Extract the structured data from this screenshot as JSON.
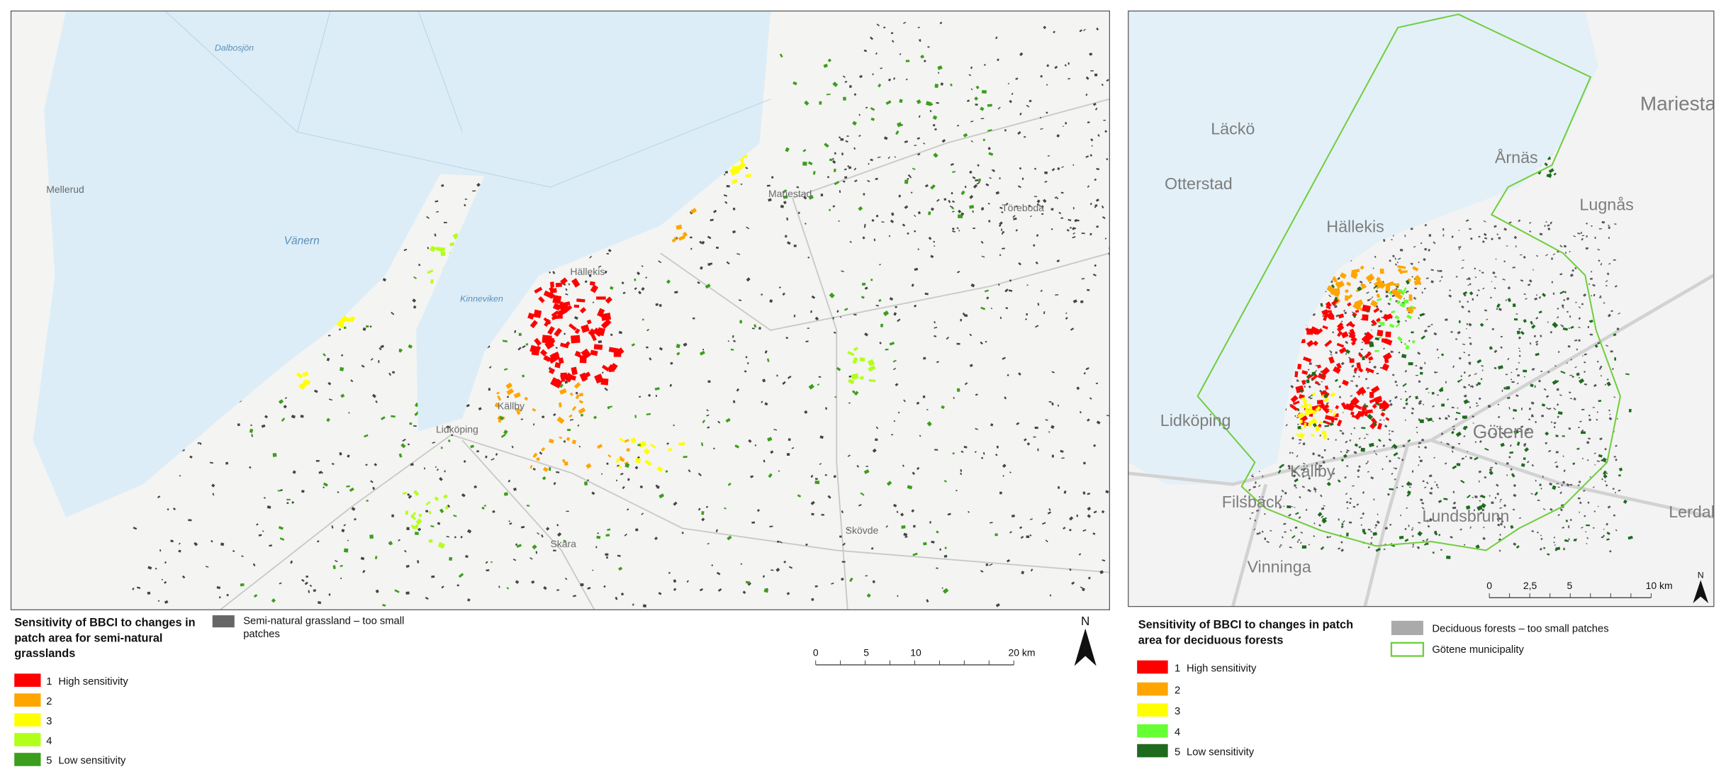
{
  "left_map": {
    "place_names": [
      "Dalbosjön",
      "Vänern",
      "Mellerud",
      "Mariestad",
      "Hällekis",
      "Kinneviken",
      "Lidköping",
      "Källby",
      "Skara",
      "Skövde",
      "Töreboda"
    ],
    "legend": {
      "title_lines": [
        "Sensitivity of BBCI to changes in",
        "patch area for semi-natural",
        "grasslands"
      ],
      "small_patches_lines": [
        "Semi-natural grassland – too small",
        "patches"
      ],
      "items": [
        {
          "number": "1",
          "label": "High sensitivity",
          "color": "#ff0000"
        },
        {
          "number": "2",
          "color": "#ffa500"
        },
        {
          "number": "3",
          "color": "#ffff00"
        },
        {
          "number": "4",
          "color": "#b2ff1a"
        },
        {
          "number": "5",
          "label": "Low sensitivity",
          "color": "#3c9e1c"
        }
      ]
    },
    "scale_bar": {
      "labels": [
        "0",
        "5",
        "10",
        "20 km"
      ]
    },
    "north": "N"
  },
  "right_map": {
    "place_names": [
      "Läckö",
      "Otterstad",
      "Mariestad",
      "Årnäs",
      "Lugnås",
      "Hällekis",
      "Lidköping",
      "Götene",
      "Källby",
      "Filsbäck",
      "Lundsbrunn",
      "Vinninga",
      "Lerdala"
    ],
    "legend": {
      "title_lines": [
        "Sensitivity of BBCI to changes in patch",
        "area for deciduous forests"
      ],
      "small_patches": "Deciduous forests – too small patches",
      "municipality": "Götene municipality",
      "items": [
        {
          "number": "1",
          "label": "High sensitivity",
          "color": "#ff0000"
        },
        {
          "number": "2",
          "color": "#ffa500"
        },
        {
          "number": "3",
          "color": "#ffff00"
        },
        {
          "number": "4",
          "color": "#66ff33"
        },
        {
          "number": "5",
          "label": "Low sensitivity",
          "color": "#1e6b1e"
        }
      ]
    },
    "scale_bar": {
      "labels": [
        "0",
        "2,5",
        "5",
        "10 km"
      ]
    },
    "north": "N"
  }
}
